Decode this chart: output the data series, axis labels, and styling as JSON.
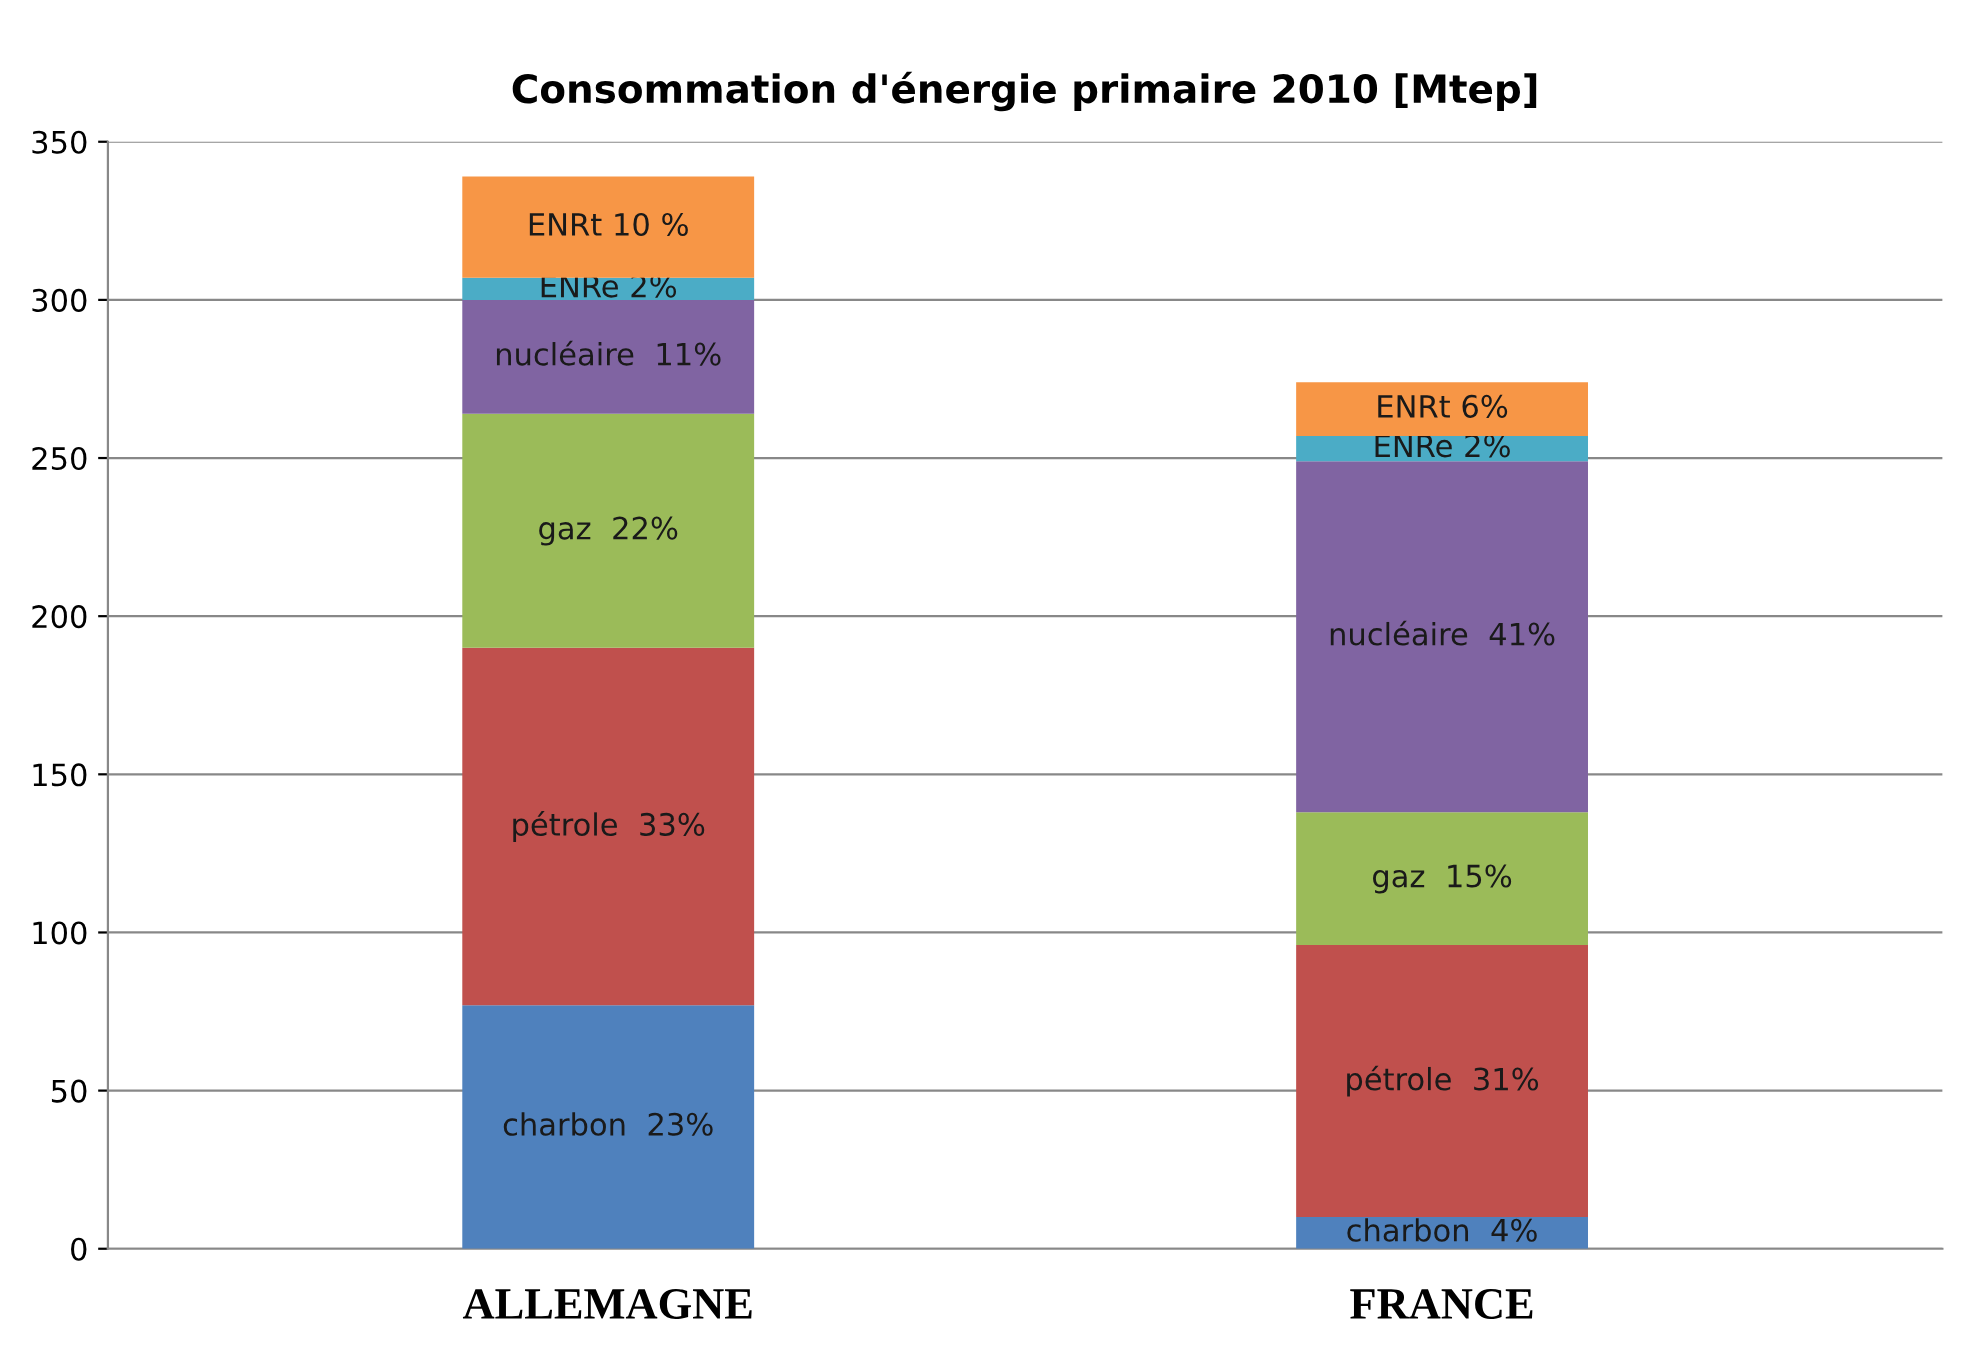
{
  "chart_data": {
    "type": "bar",
    "stacked": true,
    "title": "Consommation d'énergie primaire 2010 [Mtep]",
    "categories": [
      "ALLEMAGNE",
      "FRANCE"
    ],
    "series": [
      {
        "color": "#4f81bd",
        "values": [
          77,
          10
        ],
        "value_labels": [
          "charbon  23%",
          "charbon  4%"
        ]
      },
      {
        "color": "#c0504d",
        "values": [
          113,
          86
        ],
        "value_labels": [
          "pétrole  33%",
          "pétrole  31%"
        ]
      },
      {
        "color": "#9bbb59",
        "values": [
          74,
          42
        ],
        "value_labels": [
          "gaz  22%",
          "gaz  15%"
        ]
      },
      {
        "color": "#8064a2",
        "values": [
          36,
          111
        ],
        "value_labels": [
          "nucléaire  11%",
          "nucléaire  41%"
        ]
      },
      {
        "color": "#4bacc6",
        "values": [
          7,
          8
        ],
        "value_labels": [
          "ENRe 2%",
          "ENRe 2%"
        ]
      },
      {
        "color": "#f79646",
        "values": [
          32,
          17
        ],
        "value_labels": [
          "ENRt 10 %",
          "ENRt 6%"
        ]
      }
    ],
    "ylim": [
      0,
      350
    ],
    "yticks": [
      0,
      50,
      100,
      150,
      200,
      250,
      300,
      350
    ],
    "grid": "y"
  }
}
